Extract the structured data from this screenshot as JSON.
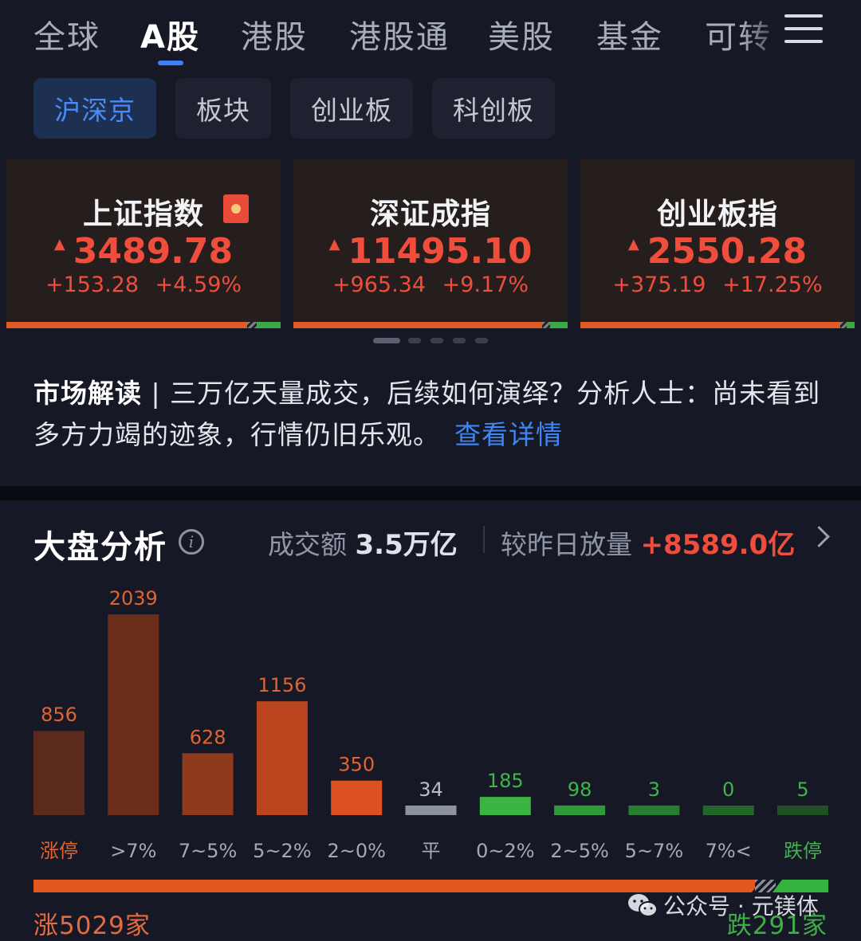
{
  "top_tabs": [
    "全球",
    "A股",
    "港股",
    "港股通",
    "美股",
    "基金",
    "可转"
  ],
  "sub_tabs": [
    "沪深京",
    "板块",
    "创业板",
    "科创板"
  ],
  "indices": [
    {
      "name": "上证指数",
      "price": "3489.78",
      "change": "+153.28",
      "pct": "+4.59%"
    },
    {
      "name": "深证成指",
      "price": "11495.10",
      "change": "+965.34",
      "pct": "+9.17%"
    },
    {
      "name": "创业板指",
      "price": "2550.28",
      "change": "+375.19",
      "pct": "+17.25%"
    }
  ],
  "news": {
    "headline": "市场解读",
    "text": "三万亿天量成交，后续如何演绎？分析人士：尚未看到多方力竭的迹象，行情仍旧乐观。",
    "link": "查看详情"
  },
  "market_analysis": {
    "title": "大盘分析",
    "turnover_label": "成交额",
    "turnover_value": "3.5万亿",
    "volume_label": "较昨日放量",
    "volume_value": "+8589.0亿"
  },
  "colors": {
    "up": "#f04d3c",
    "down": "#3aa845",
    "accent": "#3d86f5"
  },
  "chart_data": {
    "type": "bar",
    "categories": [
      "涨停",
      ">7%",
      "7~5%",
      "5~2%",
      "2~0%",
      "平",
      "0~2%",
      "2~5%",
      "5~7%",
      "7%<",
      "跌停"
    ],
    "values": [
      856,
      2039,
      628,
      1156,
      350,
      34,
      185,
      98,
      3,
      0,
      5
    ],
    "bar_colors": [
      "#5a2a1c",
      "#6b2e1b",
      "#8f3a1c",
      "#bb461d",
      "#dc5120",
      "#8d929f",
      "#3bb443",
      "#2f9a39",
      "#277d30",
      "#226629",
      "#1e4f25"
    ],
    "label_colors": [
      "#e0642f",
      "#e0642f",
      "#e0642f",
      "#e0642f",
      "#e0642f",
      "#b8bcc7",
      "#3fb44a",
      "#3fb44a",
      "#3fb44a",
      "#3fb44a",
      "#3fb44a"
    ],
    "cat_colors": [
      "#e0642f",
      "#a3a9b7",
      "#a3a9b7",
      "#a3a9b7",
      "#a3a9b7",
      "#a3a9b7",
      "#a3a9b7",
      "#a3a9b7",
      "#a3a9b7",
      "#a3a9b7",
      "#3fb44a"
    ]
  },
  "breadth": {
    "up_label": "涨5029家",
    "down_label": "跌291家",
    "up": 5029,
    "flat": 34,
    "down": 291
  },
  "watermark": "公众号 · 元镁体"
}
